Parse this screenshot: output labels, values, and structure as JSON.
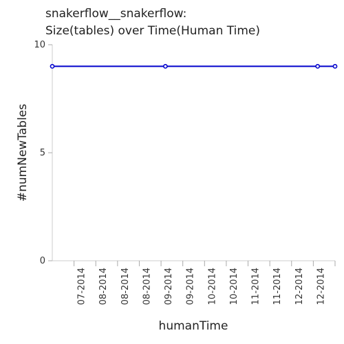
{
  "chart_data": {
    "type": "line",
    "title": "snakerflow__snakerflow:",
    "subtitle": "Size(tables) over Time(Human Time)",
    "xlabel": "humanTime",
    "ylabel": "#numNewTables",
    "ylim": [
      0,
      10
    ],
    "yticks": [
      0,
      5,
      10
    ],
    "xlim": [
      0,
      13
    ],
    "xtick_labels": [
      "07-2014",
      "08-2014",
      "08-2014",
      "08-2014",
      "09-2014",
      "09-2014",
      "10-2014",
      "10-2014",
      "11-2014",
      "11-2014",
      "12-2014",
      "12-2014"
    ],
    "grid": false,
    "legend": "none",
    "series": [
      {
        "color": "#0000cc",
        "x": [
          0,
          5.2,
          12.2,
          13
        ],
        "y": [
          9,
          9,
          9,
          9
        ]
      }
    ]
  }
}
